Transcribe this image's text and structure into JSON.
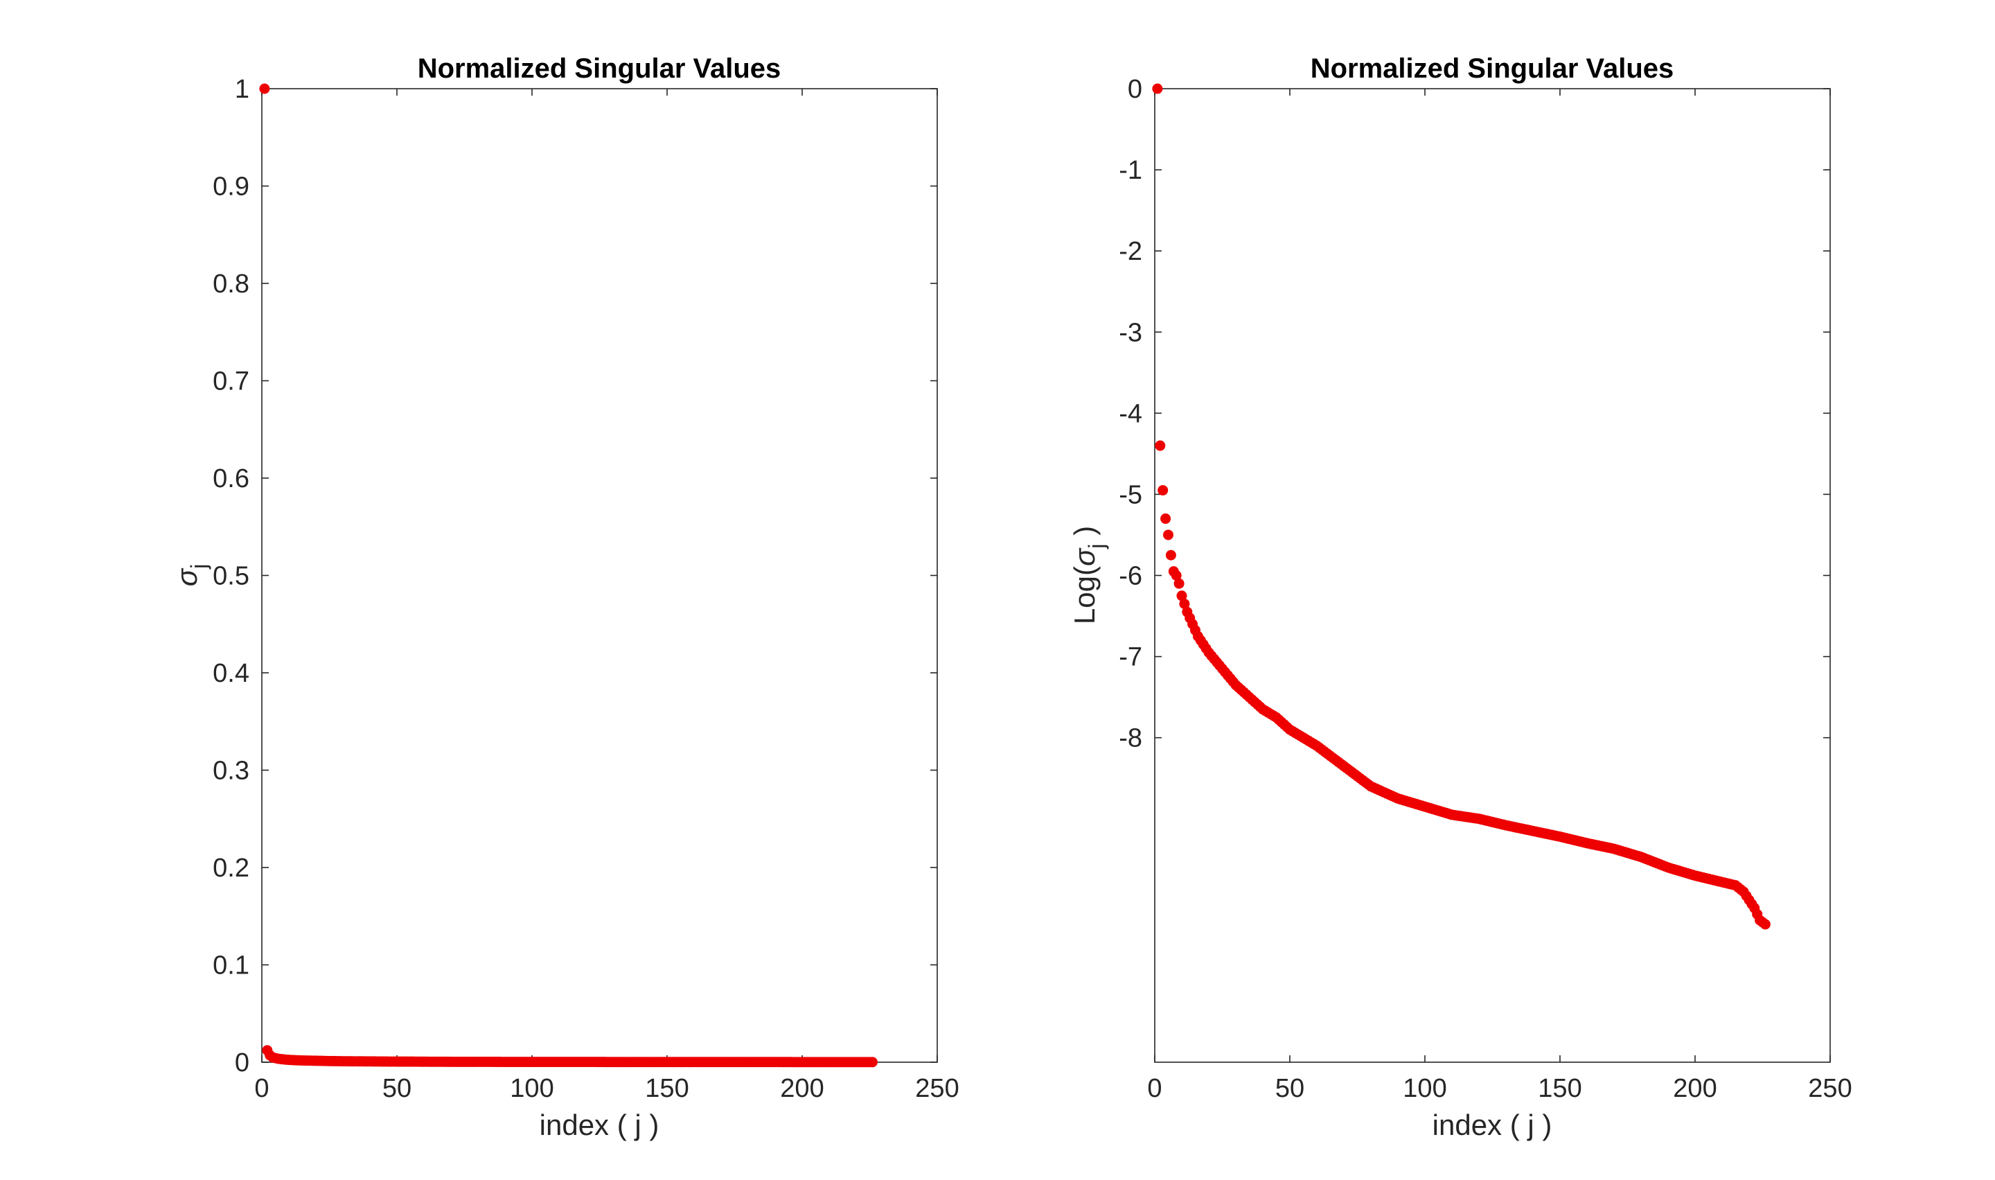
{
  "chart_data": [
    {
      "type": "scatter",
      "title": "Normalized Singular Values",
      "xlabel": "index ( j )",
      "ylabel_base": "σ",
      "ylabel_sub": "j",
      "xlim": [
        0,
        250
      ],
      "ylim": [
        0,
        1
      ],
      "xticks": [
        0,
        50,
        100,
        150,
        200,
        250
      ],
      "xtick_labels": [
        "0",
        "50",
        "100",
        "150",
        "200",
        "250"
      ],
      "yticks": [
        0,
        0.1,
        0.2,
        0.3,
        0.4,
        0.5,
        0.6,
        0.7,
        0.8,
        0.9,
        1
      ],
      "ytick_labels": [
        "0",
        "0.1",
        "0.2",
        "0.3",
        "0.4",
        "0.5",
        "0.6",
        "0.7",
        "0.8",
        "0.9",
        "1"
      ],
      "marker_color": "#ee0000",
      "grid": false,
      "series": [
        {
          "x": [
            1,
            2,
            3,
            4,
            5,
            6,
            7,
            8,
            9,
            10,
            12,
            14,
            16,
            18,
            20,
            25,
            30,
            35,
            40,
            45,
            50,
            55,
            60,
            70,
            80,
            90,
            100,
            110,
            120,
            130,
            140,
            150,
            160,
            170,
            180,
            190,
            200,
            210,
            220,
            226
          ],
          "y": [
            1,
            0.0122,
            0.0071,
            0.005,
            0.0042,
            0.0036,
            0.0032,
            0.0029,
            0.0026,
            0.0024,
            0.0021,
            0.0019,
            0.0017,
            0.0016,
            0.0015,
            0.0012,
            0.001,
            0.0009,
            0.0008,
            0.0007,
            0.0006,
            0.0006,
            0.0005,
            0.0004,
            0.0004,
            0.0003,
            0.0003,
            0.0003,
            0.0003,
            0.0002,
            0.0002,
            0.0002,
            0.0002,
            0.0002,
            0.0002,
            0.0002,
            0.0001,
            0.0001,
            0.0001,
            0.0001
          ]
        }
      ]
    },
    {
      "type": "scatter",
      "title": "Normalized Singular Values",
      "xlabel": "index ( j )",
      "ylabel_prefix": "Log(",
      "ylabel_base": "σ",
      "ylabel_sub": "j",
      "ylabel_suffix": " )",
      "xlim": [
        0,
        250
      ],
      "ylim": [
        -12,
        0
      ],
      "xticks": [
        0,
        50,
        100,
        150,
        200,
        250
      ],
      "xtick_labels": [
        "0",
        "50",
        "100",
        "150",
        "200",
        "250"
      ],
      "yticks": [
        0,
        -1,
        -2,
        -3,
        -4,
        -5,
        -6,
        -7,
        -8
      ],
      "ytick_labels": [
        "0",
        "-1",
        "-2",
        "-3",
        "-4",
        "-5",
        "-6",
        "-7",
        "-8"
      ],
      "marker_color": "#ee0000",
      "grid": false,
      "series": [
        {
          "x": [
            1,
            2,
            3,
            4,
            5,
            6,
            7,
            8,
            9,
            10,
            12,
            14,
            16,
            18,
            20,
            25,
            30,
            35,
            40,
            45,
            50,
            55,
            60,
            70,
            80,
            90,
            100,
            110,
            120,
            130,
            140,
            150,
            160,
            170,
            180,
            190,
            200,
            210,
            215,
            218,
            220,
            222,
            224,
            226
          ],
          "y": [
            0,
            -4.4,
            -4.95,
            -5.3,
            -5.5,
            -5.75,
            -5.95,
            -6.0,
            -6.1,
            -6.25,
            -6.45,
            -6.6,
            -6.75,
            -6.85,
            -6.95,
            -7.15,
            -7.35,
            -7.5,
            -7.65,
            -7.75,
            -7.9,
            -8.0,
            -8.1,
            -8.35,
            -8.6,
            -8.75,
            -8.85,
            -8.95,
            -9.0,
            -9.08,
            -9.15,
            -9.22,
            -9.3,
            -9.37,
            -9.47,
            -9.6,
            -9.7,
            -9.78,
            -9.82,
            -9.9,
            -10.0,
            -10.1,
            -10.25,
            -10.3
          ]
        }
      ]
    }
  ]
}
